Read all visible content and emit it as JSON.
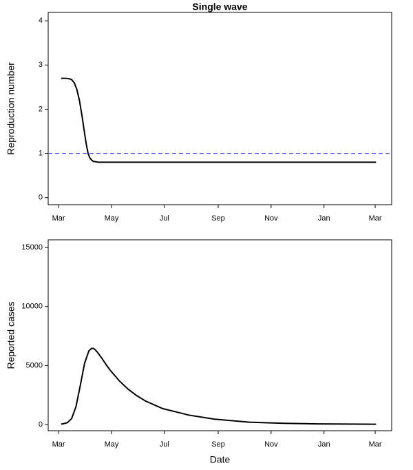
{
  "chart_data": [
    {
      "type": "line",
      "title": "Single wave",
      "ylabel": "Reproduction number",
      "x": [
        3,
        8,
        12,
        15,
        18,
        21,
        24,
        27,
        30,
        32,
        34,
        36,
        38,
        40,
        43,
        46,
        50,
        55,
        70,
        100,
        200,
        366
      ],
      "values": [
        2.7,
        2.7,
        2.69,
        2.67,
        2.6,
        2.45,
        2.2,
        1.85,
        1.45,
        1.2,
        1.0,
        0.9,
        0.85,
        0.82,
        0.81,
        0.8,
        0.8,
        0.8,
        0.8,
        0.8,
        0.8,
        0.8
      ],
      "color": "#000000",
      "reference_line": {
        "value": 1,
        "color": "#5555ee"
      },
      "xlim": [
        -12,
        384
      ],
      "xticks": [
        {
          "value": 0,
          "label": "Mar"
        },
        {
          "value": 61,
          "label": "May"
        },
        {
          "value": 122,
          "label": "Jul"
        },
        {
          "value": 184,
          "label": "Sep"
        },
        {
          "value": 245,
          "label": "Nov"
        },
        {
          "value": 306,
          "label": "Jan"
        },
        {
          "value": 365,
          "label": "Mar"
        }
      ],
      "ylim": [
        -0.16,
        4.19
      ],
      "yticks": [
        0,
        1,
        2,
        3,
        4
      ]
    },
    {
      "type": "line",
      "xlabel": "Date",
      "ylabel": "Reported cases",
      "x": [
        3,
        10,
        15,
        20,
        25,
        30,
        35,
        38,
        40,
        42,
        45,
        50,
        55,
        60,
        70,
        80,
        90,
        100,
        120,
        150,
        180,
        220,
        260,
        300,
        366
      ],
      "values": [
        30,
        150,
        500,
        1500,
        3300,
        5200,
        6250,
        6450,
        6450,
        6350,
        6100,
        5600,
        5050,
        4550,
        3700,
        3000,
        2450,
        2000,
        1350,
        800,
        450,
        200,
        100,
        50,
        20
      ],
      "color": "#000000",
      "xlim": [
        -12,
        384
      ],
      "xticks": [
        {
          "value": 0,
          "label": "Mar"
        },
        {
          "value": 61,
          "label": "May"
        },
        {
          "value": 122,
          "label": "Jul"
        },
        {
          "value": 184,
          "label": "Sep"
        },
        {
          "value": 245,
          "label": "Nov"
        },
        {
          "value": 306,
          "label": "Jan"
        },
        {
          "value": 365,
          "label": "Mar"
        }
      ],
      "ylim": [
        -525,
        15644
      ],
      "yticks": [
        0,
        5000,
        10000,
        15000
      ]
    }
  ]
}
